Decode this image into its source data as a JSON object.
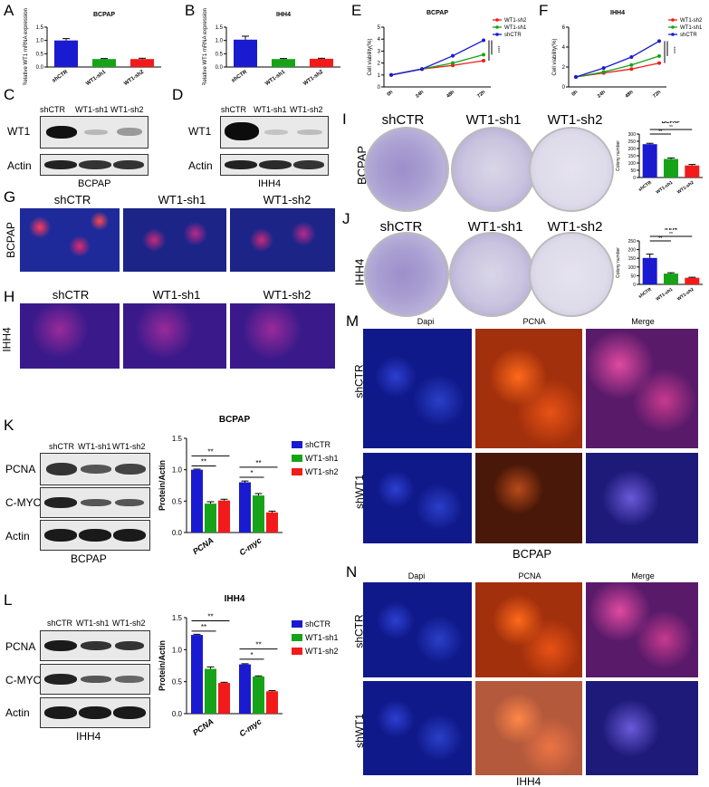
{
  "panels": {
    "A": "A",
    "B": "B",
    "C": "C",
    "D": "D",
    "E": "E",
    "F": "F",
    "G": "G",
    "H": "H",
    "I": "I",
    "J": "J",
    "K": "K",
    "L": "L",
    "M": "M",
    "N": "N"
  },
  "lanes": [
    "shCTR",
    "WT1-sh1",
    "WT1-sh2"
  ],
  "cells": {
    "bcpap": "BCPAP",
    "ihh4": "IHH4"
  },
  "proteins": {
    "wt1": "WT1",
    "actin": "Actin",
    "pcna": "PCNA",
    "cmyc": "C-MYC"
  },
  "colors": {
    "blue": "#1a1ad0",
    "green": "#17a317",
    "red": "#f21a1a"
  },
  "if_panels": {
    "cols": [
      "Dapi",
      "PCNA",
      "Merge"
    ],
    "rows": [
      "shCTR",
      "shWT1"
    ]
  },
  "chart_data": [
    {
      "id": "A",
      "type": "bar",
      "title": "BCPAP",
      "ylabel": "Relative WT1 mRNA expression",
      "categories": [
        "shCTR",
        "WT1-sh1",
        "WT1-sh2"
      ],
      "values": [
        1.0,
        0.3,
        0.3
      ],
      "errors": [
        0.07,
        0.02,
        0.03
      ],
      "ylim": [
        0,
        1.5
      ],
      "yticks": [
        "0.0",
        "0.5",
        "1.0",
        "1.5"
      ]
    },
    {
      "id": "B",
      "type": "bar",
      "title": "IHH4",
      "ylabel": "Relative WT1 mRNA expression",
      "categories": [
        "shCTR",
        "WT1-sh1",
        "WT1-sh2"
      ],
      "values": [
        1.03,
        0.3,
        0.31
      ],
      "errors": [
        0.13,
        0.02,
        0.02
      ],
      "ylim": [
        0,
        1.5
      ],
      "yticks": [
        "0.0",
        "0.5",
        "1.0",
        "1.5"
      ]
    },
    {
      "id": "E",
      "type": "line",
      "title": "BCPAP",
      "ylabel": "Cell viability(%)",
      "x": [
        "0h",
        "24h",
        "48h",
        "72h"
      ],
      "ylim": [
        0,
        5
      ],
      "yticks": [
        "0",
        "1",
        "2",
        "3",
        "4",
        "5"
      ],
      "legend_position": "top-right",
      "annotation": "****",
      "series": [
        {
          "name": "WT1-sh2",
          "color": "red",
          "values": [
            1.0,
            1.5,
            1.8,
            2.2
          ]
        },
        {
          "name": "WT1-sh1",
          "color": "green",
          "values": [
            1.0,
            1.5,
            2.0,
            2.7
          ]
        },
        {
          "name": "shCTR",
          "color": "blue",
          "values": [
            1.0,
            1.5,
            2.6,
            3.9
          ]
        }
      ]
    },
    {
      "id": "F",
      "type": "line",
      "title": "IHH4",
      "ylabel": "Cell viability(%)",
      "x": [
        "0h",
        "24h",
        "48h",
        "72h"
      ],
      "ylim": [
        0,
        6
      ],
      "yticks": [
        "0",
        "2",
        "4",
        "6"
      ],
      "legend_position": "top-right",
      "annotation": "****",
      "series": [
        {
          "name": "WT1-sh2",
          "color": "red",
          "values": [
            1.0,
            1.4,
            1.8,
            2.4
          ]
        },
        {
          "name": "WT1-sh1",
          "color": "green",
          "values": [
            1.0,
            1.5,
            2.2,
            3.1
          ]
        },
        {
          "name": "shCTR",
          "color": "blue",
          "values": [
            1.0,
            1.9,
            3.0,
            4.6
          ]
        }
      ]
    },
    {
      "id": "I",
      "type": "bar",
      "title": "BCPAP",
      "ylabel": "Colony number",
      "categories": [
        "shCTR",
        "WT1-sh1",
        "WT1-sh2"
      ],
      "values": [
        230,
        128,
        83
      ],
      "errors": [
        6,
        7,
        7
      ],
      "ylim": [
        0,
        300
      ],
      "yticks": [
        "0",
        "50",
        "100",
        "150",
        "200",
        "250",
        "300"
      ],
      "annotation": "**"
    },
    {
      "id": "J",
      "type": "bar",
      "title": "IHH4",
      "ylabel": "Colony number",
      "categories": [
        "shCTR",
        "WT1-sh1",
        "WT1-sh2"
      ],
      "values": [
        152,
        62,
        38
      ],
      "errors": [
        22,
        5,
        3
      ],
      "ylim": [
        0,
        250
      ],
      "yticks": [
        "0",
        "50",
        "100",
        "150",
        "200",
        "250"
      ],
      "annotation": "**"
    },
    {
      "id": "K",
      "type": "bar",
      "title": "BCPAP",
      "ylabel": "Protein/Actin",
      "categories": [
        "PCNA",
        "C-myc"
      ],
      "ylim": [
        0,
        1.5
      ],
      "yticks": [
        "0.0",
        "0.5",
        "1.0",
        "1.5"
      ],
      "legend_position": "right",
      "series": [
        {
          "name": "shCTR",
          "color": "blue",
          "values": [
            1.0,
            0.8
          ],
          "errors": [
            0.01,
            0.02
          ]
        },
        {
          "name": "WT1-sh1",
          "color": "green",
          "values": [
            0.46,
            0.59
          ],
          "errors": [
            0.03,
            0.03
          ]
        },
        {
          "name": "WT1-sh2",
          "color": "red",
          "values": [
            0.51,
            0.32
          ],
          "errors": [
            0.02,
            0.02
          ]
        }
      ],
      "annotations": [
        "**",
        "**",
        "*",
        "**"
      ]
    },
    {
      "id": "L",
      "type": "bar",
      "title": "IHH4",
      "ylabel": "Protein/Actin",
      "categories": [
        "PCNA",
        "C-myc"
      ],
      "ylim": [
        0,
        1.5
      ],
      "yticks": [
        "0.0",
        "0.5",
        "1.0",
        "1.5"
      ],
      "legend_position": "right",
      "series": [
        {
          "name": "shCTR",
          "color": "blue",
          "values": [
            1.23,
            0.77
          ],
          "errors": [
            0.01,
            0.01
          ]
        },
        {
          "name": "WT1-sh1",
          "color": "green",
          "values": [
            0.7,
            0.58
          ],
          "errors": [
            0.03,
            0.01
          ]
        },
        {
          "name": "WT1-sh2",
          "color": "red",
          "values": [
            0.48,
            0.35
          ],
          "errors": [
            0.01,
            0.01
          ]
        }
      ],
      "annotations": [
        "**",
        "**",
        "*",
        "**"
      ]
    }
  ]
}
